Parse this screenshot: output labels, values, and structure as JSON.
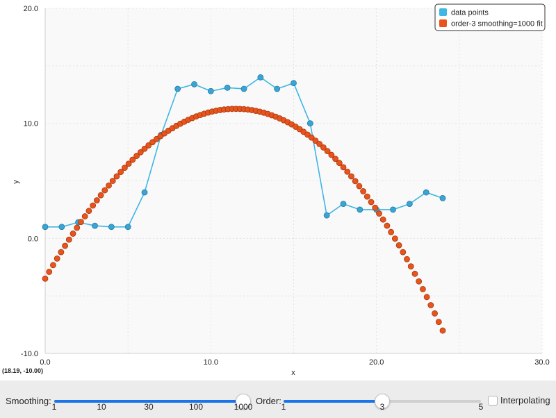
{
  "chart_data": {
    "type": "scatter",
    "title": "",
    "xlabel": "x",
    "ylabel": "y",
    "xlim": [
      0,
      30
    ],
    "ylim": [
      -10,
      20
    ],
    "x_ticks": [
      "0.0",
      "10.0",
      "20.0",
      "30.0"
    ],
    "y_ticks": [
      "-10.0",
      "0.0",
      "10.0",
      "20.0"
    ],
    "grid": true,
    "legend_position": "top-right",
    "coordinate_readout": "(18.19, -10.00)",
    "series": [
      {
        "name": "data points",
        "color": "#3fb6e3",
        "style": "line-with-markers",
        "x": [
          0,
          1,
          2,
          3,
          4,
          5,
          6,
          7,
          8,
          9,
          10,
          11,
          12,
          13,
          14,
          15,
          16,
          17,
          18,
          19,
          20,
          21,
          22,
          23,
          24
        ],
        "y": [
          1.0,
          1.0,
          1.4,
          1.1,
          1.0,
          1.0,
          4.0,
          9.0,
          13.0,
          13.4,
          12.8,
          13.1,
          13.0,
          14.0,
          13.0,
          13.5,
          10.0,
          2.0,
          3.0,
          2.5,
          2.5,
          2.5,
          3.0,
          4.0,
          3.5
        ]
      },
      {
        "name": "order-3 smoothing=1000 fit",
        "color": "#e8541c",
        "style": "markers",
        "x_range": [
          0,
          24
        ],
        "num_points": 101,
        "poly_coeffs": [
          -3.5,
          2.5,
          -0.1,
          -0.0005
        ]
      }
    ]
  },
  "controls": {
    "smoothing": {
      "label": "Smoothing:",
      "ticks": [
        "1",
        "10",
        "30",
        "100",
        "1000"
      ],
      "value_fraction": 1.0
    },
    "order": {
      "label": "Order:",
      "ticks": [
        "1",
        "3",
        "5"
      ],
      "value_fraction": 0.5
    },
    "interpolating": {
      "label": "Interpolating",
      "checked": false
    }
  }
}
